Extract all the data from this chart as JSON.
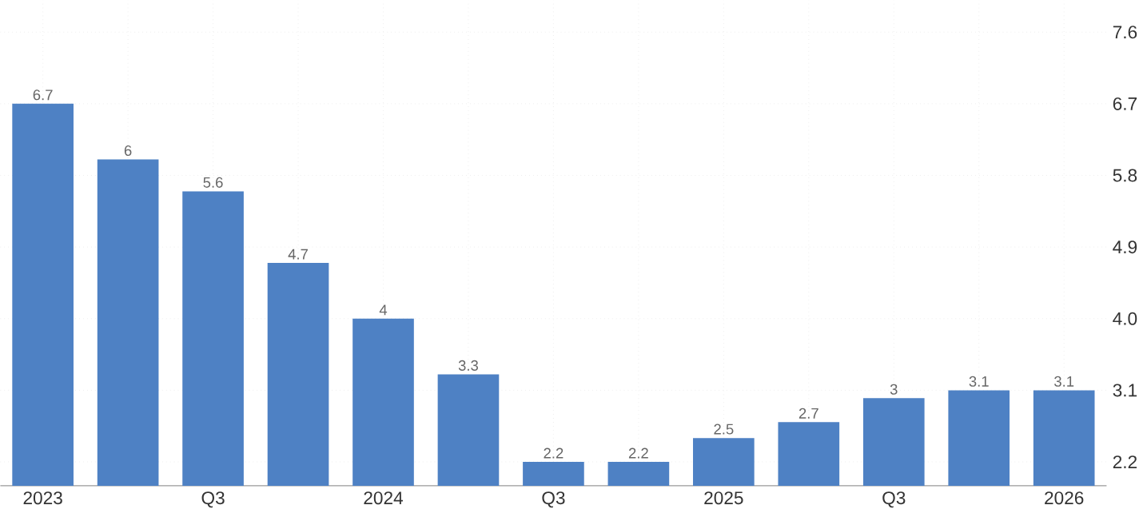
{
  "chart_data": {
    "type": "bar",
    "categories": [
      "2023",
      null,
      "Q3",
      null,
      "2024",
      null,
      "Q3",
      null,
      "2025",
      null,
      "Q3",
      null,
      "2026"
    ],
    "values": [
      6.7,
      6,
      5.6,
      4.7,
      4,
      3.3,
      2.2,
      2.2,
      2.5,
      2.7,
      3,
      3.1,
      3.1
    ],
    "color": "#4e81c4",
    "data_labels": true,
    "grid": true,
    "ylim": [
      1.9,
      8.0
    ],
    "yticks": [
      2.2,
      3.1,
      {
        "value": 4,
        "label": "4.0"
      },
      4.9,
      5.8,
      6.7,
      7.6
    ]
  }
}
